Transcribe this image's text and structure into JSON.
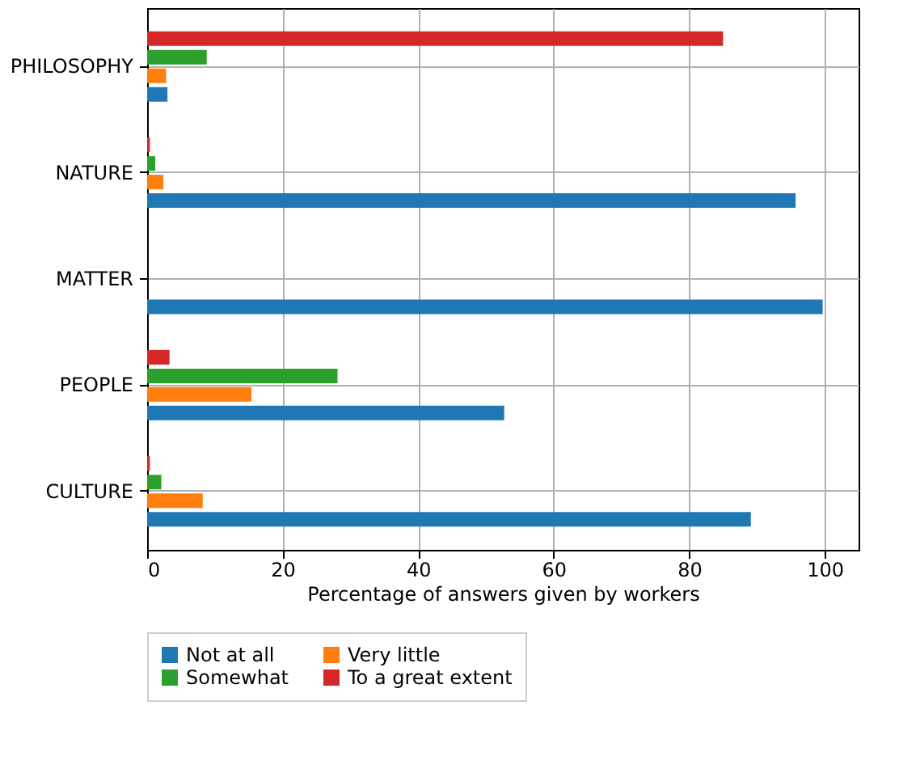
{
  "chart_data": {
    "type": "bar",
    "orientation": "horizontal",
    "xlabel": "Percentage of answers given by workers",
    "categories": [
      "PHILOSOPHY",
      "NATURE",
      "MATTER",
      "PEOPLE",
      "CULTURE"
    ],
    "series": [
      {
        "name": "Not at all",
        "color": "#1f77b4",
        "values": [
          3.0,
          95.7,
          99.7,
          52.7,
          89.1
        ]
      },
      {
        "name": "Very little",
        "color": "#ff7f0e",
        "values": [
          2.8,
          2.4,
          0,
          15.4,
          8.2
        ]
      },
      {
        "name": "Somewhat",
        "color": "#2ca02c",
        "values": [
          8.8,
          1.2,
          0,
          28.1,
          2.1
        ]
      },
      {
        "name": "To a great extent",
        "color": "#d62728",
        "values": [
          85.0,
          0.4,
          0,
          3.3,
          0.4
        ]
      }
    ],
    "xlim": [
      0,
      105
    ],
    "xticks": [
      0,
      20,
      40,
      60,
      80,
      100
    ],
    "grid": true,
    "legend": "bottom"
  }
}
